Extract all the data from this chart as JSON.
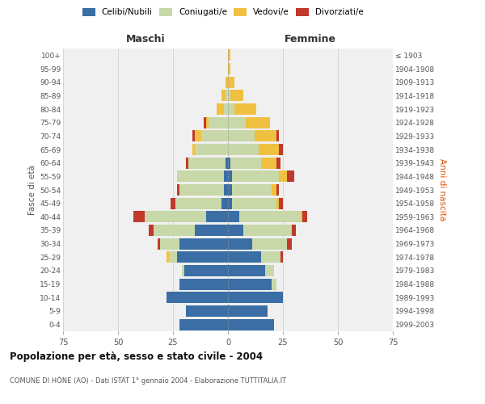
{
  "age_groups": [
    "0-4",
    "5-9",
    "10-14",
    "15-19",
    "20-24",
    "25-29",
    "30-34",
    "35-39",
    "40-44",
    "45-49",
    "50-54",
    "55-59",
    "60-64",
    "65-69",
    "70-74",
    "75-79",
    "80-84",
    "85-89",
    "90-94",
    "95-99",
    "100+"
  ],
  "birth_years": [
    "1999-2003",
    "1994-1998",
    "1989-1993",
    "1984-1988",
    "1979-1983",
    "1974-1978",
    "1969-1973",
    "1964-1968",
    "1959-1963",
    "1954-1958",
    "1949-1953",
    "1944-1948",
    "1939-1943",
    "1934-1938",
    "1929-1933",
    "1924-1928",
    "1919-1923",
    "1914-1918",
    "1909-1913",
    "1904-1908",
    "≤ 1903"
  ],
  "maschi": {
    "celibi": [
      22,
      19,
      28,
      22,
      20,
      23,
      22,
      15,
      10,
      3,
      2,
      2,
      1,
      0,
      0,
      0,
      0,
      0,
      0,
      0,
      0
    ],
    "coniugati": [
      0,
      0,
      0,
      0,
      1,
      4,
      9,
      19,
      28,
      21,
      20,
      21,
      17,
      15,
      12,
      9,
      2,
      1,
      0,
      0,
      0
    ],
    "vedovi": [
      0,
      0,
      0,
      0,
      0,
      1,
      0,
      0,
      0,
      0,
      0,
      0,
      0,
      1,
      3,
      1,
      3,
      2,
      1,
      0,
      0
    ],
    "divorziati": [
      0,
      0,
      0,
      0,
      0,
      0,
      1,
      2,
      5,
      2,
      1,
      0,
      1,
      0,
      1,
      1,
      0,
      0,
      0,
      0,
      0
    ]
  },
  "femmine": {
    "nubili": [
      21,
      18,
      25,
      20,
      17,
      15,
      11,
      7,
      5,
      2,
      2,
      2,
      1,
      0,
      0,
      0,
      0,
      0,
      0,
      0,
      0
    ],
    "coniugate": [
      0,
      0,
      0,
      2,
      4,
      9,
      16,
      22,
      28,
      20,
      18,
      21,
      14,
      14,
      12,
      8,
      3,
      1,
      0,
      0,
      0
    ],
    "vedove": [
      0,
      0,
      0,
      0,
      0,
      0,
      0,
      0,
      1,
      1,
      2,
      4,
      7,
      9,
      10,
      11,
      10,
      6,
      3,
      1,
      1
    ],
    "divorziate": [
      0,
      0,
      0,
      0,
      0,
      1,
      2,
      2,
      2,
      2,
      1,
      3,
      2,
      2,
      1,
      0,
      0,
      0,
      0,
      0,
      0
    ]
  },
  "colors": {
    "celibi": "#3a6ea5",
    "coniugati": "#c8d8a8",
    "vedovi": "#f0c040",
    "divorziati": "#c0392b"
  },
  "title": "Popolazione per età, sesso e stato civile - 2004",
  "subtitle": "COMUNE DI HÔNE (AO) - Dati ISTAT 1° gennaio 2004 - Elaborazione TUTTITALIA.IT",
  "xlabel_left": "Maschi",
  "xlabel_right": "Femmine",
  "ylabel_left": "Fasce di età",
  "ylabel_right": "Anni di nascita",
  "xlim": 75,
  "bg_color": "#f0f0f0",
  "grid_color": "#cccccc"
}
